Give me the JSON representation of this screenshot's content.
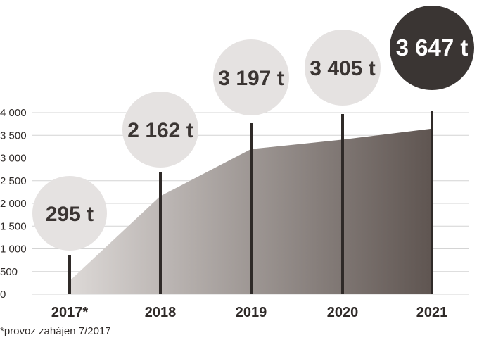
{
  "chart_data": {
    "type": "area",
    "categories": [
      "2017*",
      "2018",
      "2019",
      "2020",
      "2021"
    ],
    "values": [
      295,
      2162,
      3197,
      3405,
      3647
    ],
    "value_labels": [
      "295 t",
      "2 162 t",
      "3 197 t",
      "3 405 t",
      "3 647 t"
    ],
    "yticks": [
      "4 000",
      "3 500",
      "3 000",
      "2 500",
      "2 000",
      "1 500",
      "1 000",
      "500",
      "0"
    ],
    "ylim": [
      0,
      4000
    ],
    "grid": true,
    "title": "",
    "xlabel": "",
    "ylabel": "",
    "colors": {
      "area_light": "#ddd9d7",
      "area_dark": "#5f5551",
      "bubble": "#e5e2e1",
      "bubble_highlight": "#3a3533",
      "stem": "#2f2a28",
      "grid": "#d4d4d4"
    }
  },
  "footnote": "*provoz zahájen 7/2017"
}
